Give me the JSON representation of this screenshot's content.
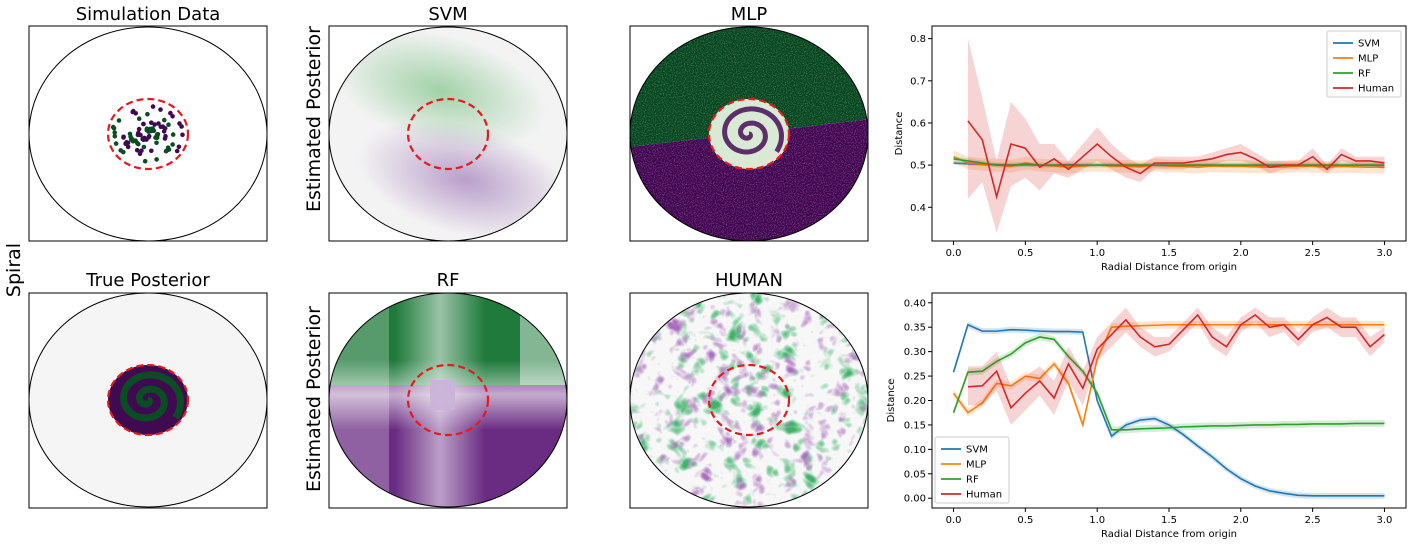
{
  "row_label": "Spiral",
  "panels": {
    "sim": "Simulation Data",
    "true": "True Posterior",
    "svm": "SVM",
    "mlp": "MLP",
    "rf": "RF",
    "human": "HUMAN",
    "est1": "Estimated Posterior",
    "est2": "Estimated Posterior"
  },
  "colors": {
    "purple": "#3f0a50",
    "green": "#0b4d22",
    "grey_bg": "#f5f5f5",
    "circle_red": "#e41a1c",
    "svm": "#1f77b4",
    "mlp": "#ff7f0e",
    "rf": "#2ca02c",
    "human": "#d62728"
  },
  "chart_data": [
    {
      "type": "line",
      "xlabel": "Radial Distance from origin",
      "ylabel": "Distance",
      "xlim": [
        -0.15,
        3.15
      ],
      "ylim": [
        0.32,
        0.83
      ],
      "xticks": [
        "0.0",
        "0.5",
        "1.0",
        "1.5",
        "2.0",
        "2.5",
        "3.0"
      ],
      "yticks": [
        "0.4",
        "0.5",
        "0.6",
        "0.7",
        "0.8"
      ],
      "legend_position": "top-right",
      "x": [
        0.0,
        0.1,
        0.2,
        0.3,
        0.4,
        0.5,
        0.6,
        0.7,
        0.8,
        0.9,
        1.0,
        1.1,
        1.2,
        1.3,
        1.4,
        1.5,
        1.6,
        1.7,
        1.8,
        1.9,
        2.0,
        2.1,
        2.2,
        2.3,
        2.4,
        2.5,
        2.6,
        2.7,
        2.8,
        2.9,
        3.0
      ],
      "series": [
        {
          "name": "SVM",
          "color": "#1f77b4",
          "values": [
            0.505,
            0.503,
            0.502,
            0.501,
            0.5,
            0.501,
            0.5,
            0.5,
            0.501,
            0.5,
            0.5,
            0.5,
            0.5,
            0.5,
            0.5,
            0.5,
            0.5,
            0.5,
            0.5,
            0.5,
            0.5,
            0.5,
            0.5,
            0.5,
            0.5,
            0.5,
            0.5,
            0.5,
            0.5,
            0.5,
            0.5
          ],
          "band": 0.004
        },
        {
          "name": "MLP",
          "color": "#ff7f0e",
          "values": [
            0.52,
            0.505,
            0.502,
            0.5,
            0.497,
            0.505,
            0.5,
            0.498,
            0.495,
            0.498,
            0.5,
            0.498,
            0.497,
            0.496,
            0.5,
            0.498,
            0.497,
            0.495,
            0.498,
            0.497,
            0.497,
            0.496,
            0.495,
            0.496,
            0.498,
            0.497,
            0.495,
            0.497,
            0.496,
            0.495,
            0.495
          ],
          "band": 0.015
        },
        {
          "name": "RF",
          "color": "#2ca02c",
          "values": [
            0.515,
            0.51,
            0.505,
            0.5,
            0.5,
            0.502,
            0.5,
            0.5,
            0.5,
            0.5,
            0.5,
            0.5,
            0.5,
            0.5,
            0.5,
            0.5,
            0.5,
            0.5,
            0.5,
            0.5,
            0.5,
            0.5,
            0.5,
            0.5,
            0.5,
            0.5,
            0.5,
            0.5,
            0.5,
            0.5,
            0.5
          ],
          "band": 0.006
        },
        {
          "name": "Human",
          "color": "#d62728",
          "values": [
            null,
            0.605,
            0.56,
            0.425,
            0.55,
            0.54,
            0.495,
            0.515,
            0.49,
            0.52,
            0.55,
            0.52,
            0.495,
            0.48,
            0.505,
            0.505,
            0.505,
            0.51,
            0.515,
            0.525,
            0.53,
            0.515,
            0.495,
            0.5,
            0.5,
            0.52,
            0.49,
            0.525,
            0.51,
            0.51,
            0.505
          ],
          "band_lo": [
            null,
            0.42,
            0.46,
            0.34,
            0.45,
            0.47,
            0.44,
            0.48,
            0.47,
            0.49,
            0.51,
            0.49,
            0.47,
            0.46,
            0.49,
            0.49,
            0.49,
            0.5,
            0.5,
            0.51,
            0.51,
            0.5,
            0.48,
            0.49,
            0.49,
            0.5,
            0.48,
            0.51,
            0.5,
            0.5,
            0.49
          ],
          "band_hi": [
            null,
            0.8,
            0.66,
            0.51,
            0.65,
            0.61,
            0.55,
            0.55,
            0.51,
            0.55,
            0.59,
            0.55,
            0.52,
            0.5,
            0.52,
            0.52,
            0.52,
            0.52,
            0.53,
            0.54,
            0.55,
            0.53,
            0.51,
            0.51,
            0.51,
            0.54,
            0.5,
            0.54,
            0.52,
            0.52,
            0.52
          ]
        }
      ]
    },
    {
      "type": "line",
      "xlabel": "Radial Distance from origin",
      "ylabel": "Distance",
      "xlim": [
        -0.15,
        3.15
      ],
      "ylim": [
        -0.02,
        0.42
      ],
      "xticks": [
        "0.0",
        "0.5",
        "1.0",
        "1.5",
        "2.0",
        "2.5",
        "3.0"
      ],
      "yticks": [
        "0.00",
        "0.05",
        "0.10",
        "0.15",
        "0.20",
        "0.25",
        "0.30",
        "0.35",
        "0.40"
      ],
      "legend_position": "bottom-left",
      "x": [
        0.0,
        0.1,
        0.2,
        0.3,
        0.4,
        0.5,
        0.6,
        0.7,
        0.8,
        0.9,
        1.0,
        1.1,
        1.2,
        1.3,
        1.4,
        1.5,
        1.6,
        1.7,
        1.8,
        1.9,
        2.0,
        2.1,
        2.2,
        2.3,
        2.4,
        2.5,
        2.6,
        2.7,
        2.8,
        2.9,
        3.0
      ],
      "series": [
        {
          "name": "SVM",
          "color": "#1f77b4",
          "values": [
            0.258,
            0.355,
            0.342,
            0.342,
            0.345,
            0.344,
            0.342,
            0.341,
            0.341,
            0.34,
            0.2,
            0.127,
            0.15,
            0.16,
            0.163,
            0.15,
            0.13,
            0.107,
            0.085,
            0.06,
            0.04,
            0.025,
            0.015,
            0.01,
            0.006,
            0.005,
            0.005,
            0.005,
            0.005,
            0.005,
            0.005
          ],
          "band": 0.006
        },
        {
          "name": "MLP",
          "color": "#ff7f0e",
          "values": [
            0.215,
            0.175,
            0.195,
            0.235,
            0.23,
            0.25,
            0.245,
            0.275,
            0.235,
            0.15,
            0.285,
            0.35,
            0.352,
            0.353,
            0.354,
            0.355,
            0.355,
            0.355,
            0.355,
            0.355,
            0.355,
            0.355,
            0.355,
            0.355,
            0.355,
            0.355,
            0.355,
            0.355,
            0.355,
            0.355,
            0.355
          ],
          "band": 0.008
        },
        {
          "name": "RF",
          "color": "#2ca02c",
          "values": [
            0.175,
            0.258,
            0.26,
            0.28,
            0.295,
            0.318,
            0.33,
            0.325,
            0.29,
            0.26,
            0.215,
            0.14,
            0.14,
            0.142,
            0.143,
            0.144,
            0.146,
            0.147,
            0.148,
            0.148,
            0.149,
            0.15,
            0.15,
            0.151,
            0.151,
            0.152,
            0.152,
            0.152,
            0.153,
            0.153,
            0.153
          ],
          "band": 0.007
        },
        {
          "name": "Human",
          "color": "#d62728",
          "values": [
            null,
            0.228,
            0.23,
            0.26,
            0.185,
            0.215,
            0.24,
            0.205,
            0.275,
            0.225,
            0.305,
            0.335,
            0.365,
            0.33,
            0.31,
            0.315,
            0.345,
            0.375,
            0.33,
            0.31,
            0.355,
            0.375,
            0.35,
            0.355,
            0.325,
            0.355,
            0.37,
            0.35,
            0.35,
            0.31,
            0.335
          ],
          "band_lo": [
            null,
            0.19,
            0.19,
            0.22,
            0.15,
            0.18,
            0.21,
            0.17,
            0.24,
            0.19,
            0.28,
            0.31,
            0.34,
            0.31,
            0.29,
            0.3,
            0.33,
            0.36,
            0.31,
            0.29,
            0.34,
            0.36,
            0.33,
            0.34,
            0.31,
            0.34,
            0.35,
            0.33,
            0.33,
            0.29,
            0.32
          ],
          "band_hi": [
            null,
            0.27,
            0.27,
            0.3,
            0.23,
            0.25,
            0.27,
            0.24,
            0.31,
            0.26,
            0.33,
            0.36,
            0.39,
            0.35,
            0.33,
            0.33,
            0.36,
            0.39,
            0.35,
            0.33,
            0.37,
            0.39,
            0.37,
            0.37,
            0.34,
            0.37,
            0.39,
            0.37,
            0.37,
            0.33,
            0.35
          ]
        }
      ]
    }
  ]
}
